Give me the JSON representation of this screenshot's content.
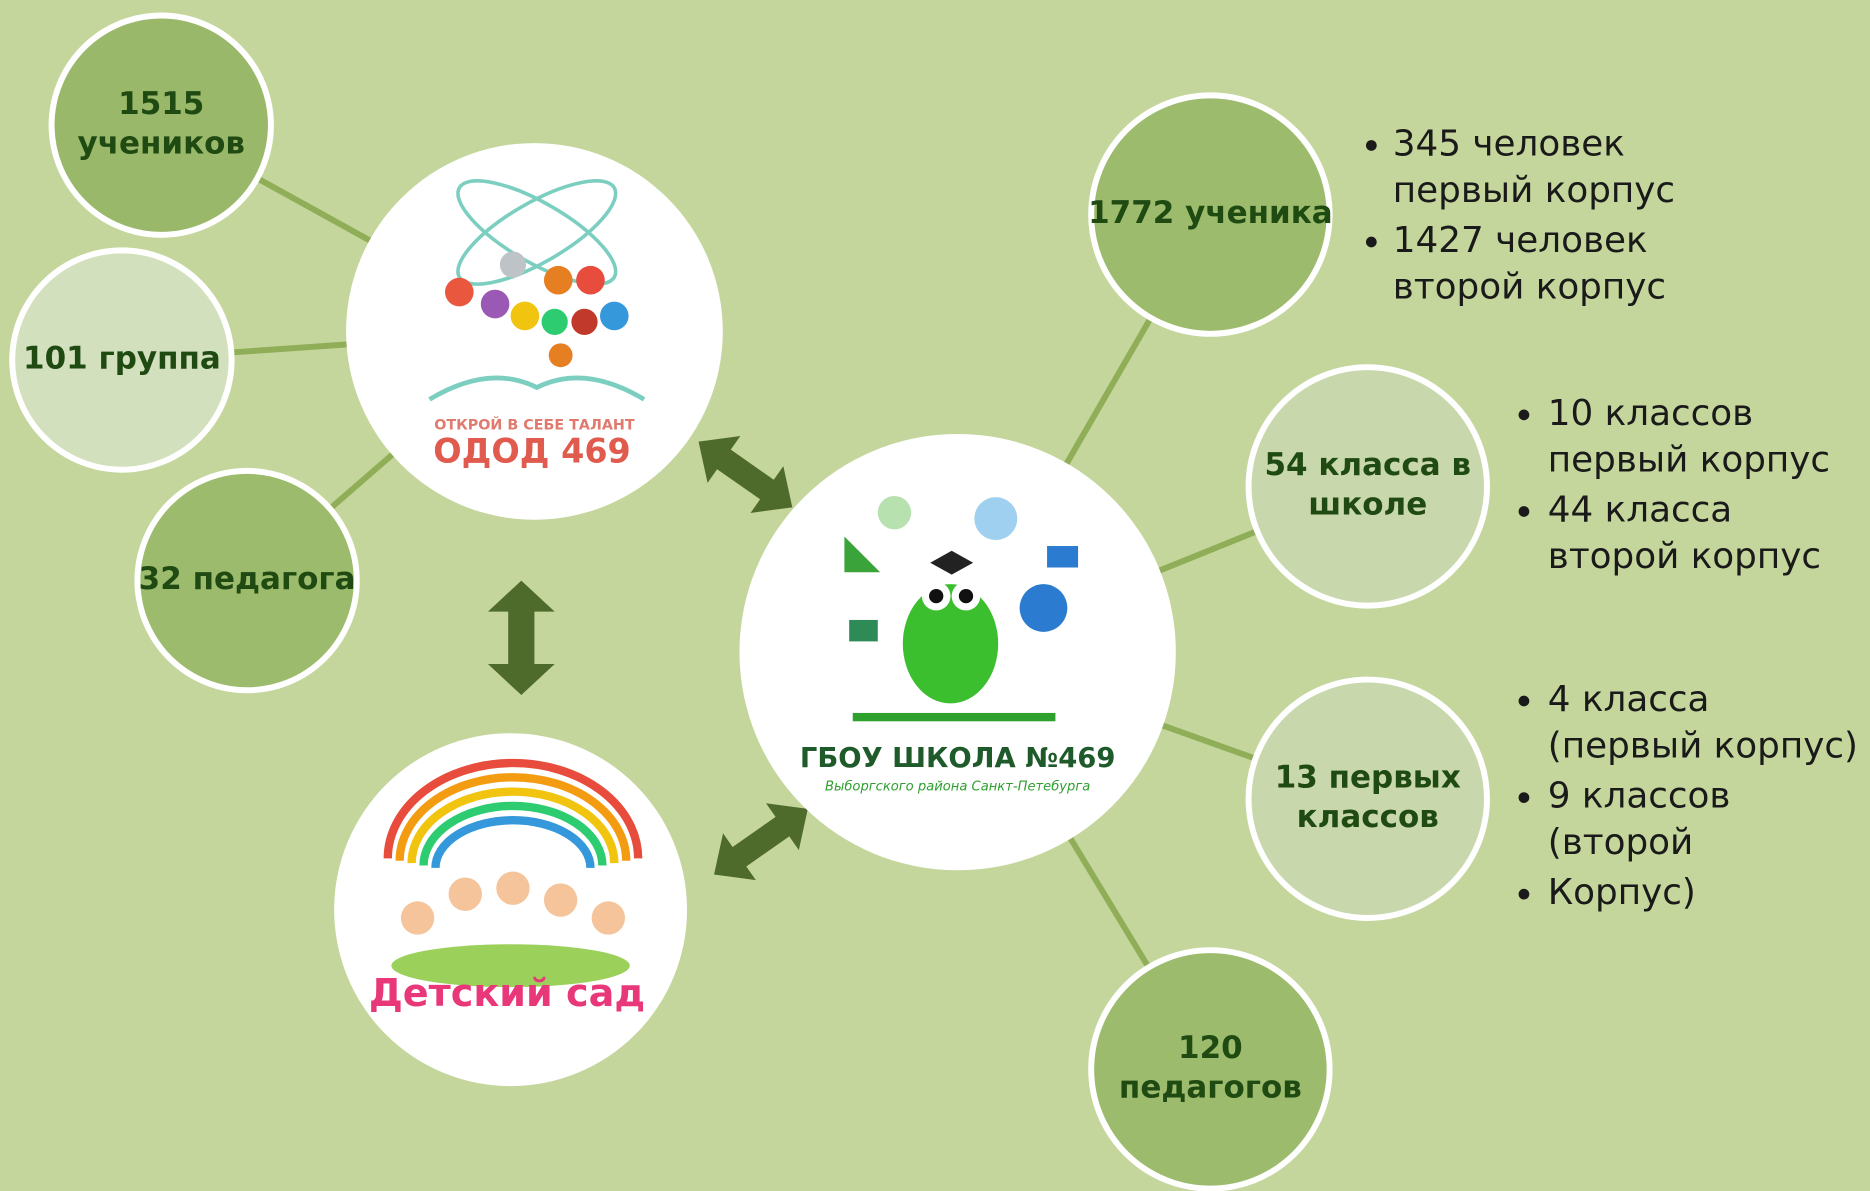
{
  "odod_logo": {
    "slogan": "ОТКРОЙ В СЕБЕ ТАЛАНТ",
    "name": "ОДОД 469"
  },
  "kindergarten_logo": {
    "name": "Детский сад"
  },
  "school_logo": {
    "name": "ГБОУ ШКОЛА №469",
    "subtitle": "Выборгского района Санкт-Петебурга"
  },
  "odod_nodes": [
    {
      "lines": [
        "1515",
        "учеников"
      ]
    },
    {
      "lines": [
        "101 группа"
      ]
    },
    {
      "lines": [
        "32 педагога"
      ]
    }
  ],
  "school_nodes": [
    {
      "lines": [
        "1772 ученика"
      ],
      "bullets": [
        [
          "345 человек",
          "первый корпус"
        ],
        [
          "1427  человек",
          "второй корпус"
        ]
      ]
    },
    {
      "lines": [
        "54 класса в",
        "школе"
      ],
      "bullets": [
        [
          " 10 классов",
          "первый корпус"
        ],
        [
          " 44  класса",
          "второй корпус"
        ]
      ]
    },
    {
      "lines": [
        "13 первых",
        "классов"
      ],
      "bullets": [
        [
          "4 класса",
          "(первый корпус)"
        ],
        [
          "9 классов",
          "(второй"
        ],
        [
          "Корпус)"
        ]
      ]
    },
    {
      "lines": [
        "120",
        "педагогов"
      ]
    }
  ]
}
